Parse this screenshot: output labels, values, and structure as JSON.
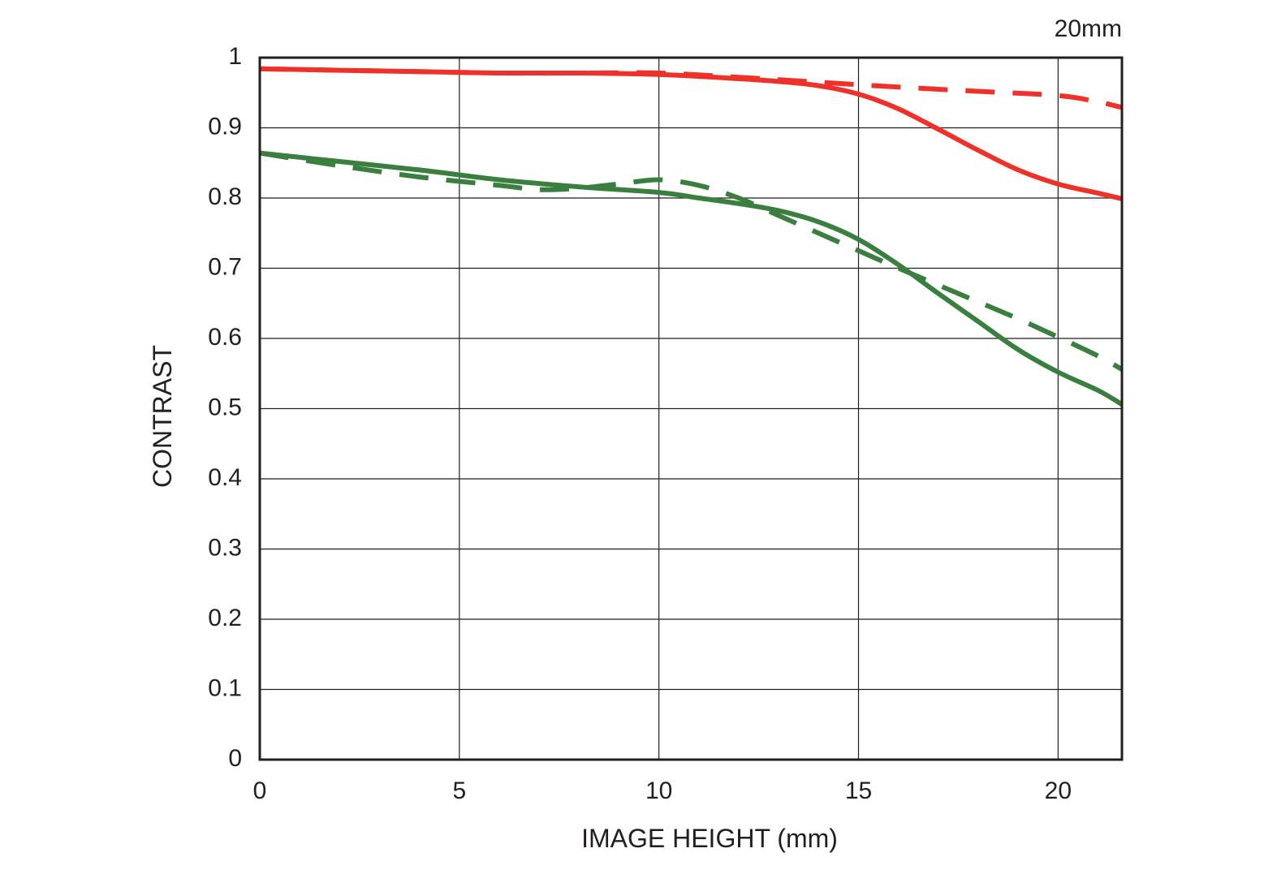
{
  "chart_data": {
    "type": "line",
    "title": "",
    "corner_label": "20mm",
    "xlabel": "IMAGE HEIGHT (mm)",
    "ylabel": "CONTRAST",
    "xlim": [
      0,
      21.6
    ],
    "ylim": [
      0,
      1
    ],
    "xticks": [
      0,
      5,
      10,
      15,
      20
    ],
    "xtick_labels": [
      "0",
      "5",
      "10",
      "15",
      "20"
    ],
    "yticks": [
      0,
      0.1,
      0.2,
      0.3,
      0.4,
      0.5,
      0.6,
      0.7,
      0.8,
      0.9,
      1
    ],
    "ytick_labels": [
      "0",
      "0.1",
      "0.2",
      "0.3",
      "0.4",
      "0.5",
      "0.6",
      "0.7",
      "0.8",
      "0.9",
      "1"
    ],
    "grid": true,
    "series": [
      {
        "color": "#ee3129",
        "style": "solid",
        "x": [
          0,
          2,
          4,
          6,
          8,
          10,
          12,
          13,
          14,
          15,
          16,
          17,
          18,
          19,
          20,
          21,
          21.6
        ],
        "y": [
          0.984,
          0.982,
          0.98,
          0.978,
          0.978,
          0.976,
          0.97,
          0.966,
          0.96,
          0.948,
          0.927,
          0.898,
          0.868,
          0.84,
          0.82,
          0.807,
          0.799
        ]
      },
      {
        "color": "#ee3129",
        "style": "dashed",
        "x": [
          0,
          2,
          4,
          6,
          8,
          10,
          12,
          14,
          16,
          18,
          20,
          21,
          21.6
        ],
        "y": [
          0.984,
          0.982,
          0.98,
          0.978,
          0.978,
          0.978,
          0.972,
          0.965,
          0.958,
          0.952,
          0.946,
          0.937,
          0.929
        ]
      },
      {
        "color": "#3a7f3f",
        "style": "solid",
        "x": [
          0,
          2,
          4,
          6,
          8,
          10,
          11,
          12,
          13,
          14,
          15,
          16,
          17,
          18,
          19,
          20,
          21,
          21.6
        ],
        "y": [
          0.864,
          0.852,
          0.84,
          0.826,
          0.816,
          0.808,
          0.8,
          0.792,
          0.782,
          0.766,
          0.741,
          0.705,
          0.664,
          0.624,
          0.584,
          0.552,
          0.526,
          0.506
        ]
      },
      {
        "color": "#3a7f3f",
        "style": "dashed",
        "x": [
          0,
          2,
          4,
          6,
          7,
          8,
          9,
          10,
          11,
          12,
          13,
          14,
          15,
          16,
          17,
          18,
          19,
          20,
          21,
          21.6
        ],
        "y": [
          0.864,
          0.846,
          0.83,
          0.818,
          0.812,
          0.814,
          0.82,
          0.826,
          0.818,
          0.8,
          0.775,
          0.75,
          0.725,
          0.7,
          0.676,
          0.652,
          0.628,
          0.602,
          0.575,
          0.556
        ]
      }
    ]
  }
}
